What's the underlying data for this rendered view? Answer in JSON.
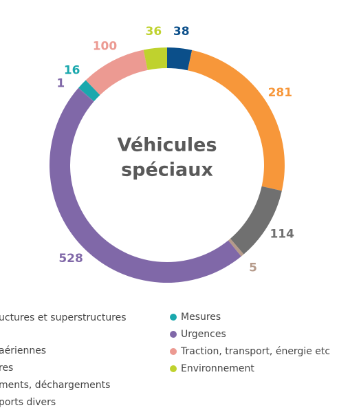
{
  "chart_data": {
    "type": "donut",
    "title": [
      "Véhicules",
      "spéciaux"
    ],
    "categories": [
      "uctures et superstructures",
      "aériennes",
      "res",
      "ments, déchargements",
      "Urgences",
      "ports divers",
      "Mesures",
      "Traction, transport, énergie etc",
      "Environnement"
    ],
    "values": [
      38,
      281,
      114,
      5,
      528,
      1,
      16,
      100,
      36
    ],
    "colors": [
      "#0b4f8a",
      "#f7973a",
      "#707070",
      "#b59a8a",
      "#8068a8",
      "#8068a8",
      "#1aa8ad",
      "#ec9a92",
      "#bfd22e"
    ],
    "legend": "bottom"
  }
}
